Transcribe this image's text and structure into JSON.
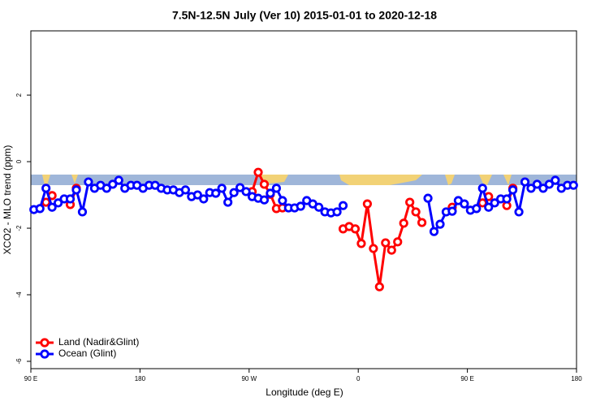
{
  "chart_data": {
    "type": "line",
    "title": "7.5N-12.5N July (Ver 10)   2015-01-01 to 2020-12-18",
    "x_label": "Longitude (deg E)",
    "y_label": "XCO2 - MLO trend (ppm)",
    "xlim": [
      90,
      540
    ],
    "ylim": [
      -6.22,
      3.93
    ],
    "xticks": [
      {
        "value": 90,
        "label": "90 E"
      },
      180,
      {
        "value": 270,
        "label": "90 W"
      },
      {
        "value": 360,
        "label": "0"
      },
      {
        "value": 450,
        "label": "90 E"
      },
      {
        "value": 540,
        "label": "180"
      }
    ],
    "yticks": [
      2,
      0,
      -2,
      -4,
      -6
    ],
    "legend": "bottom-left",
    "x": [
      92.5,
      97.5,
      102.5,
      107.5,
      112.5,
      117.5,
      122.5,
      127.5,
      132.5,
      137.5,
      142.5,
      147.5,
      152.5,
      157.5,
      162.5,
      167.5,
      172.5,
      177.5,
      182.5,
      187.5,
      192.5,
      197.5,
      202.5,
      207.5,
      212.5,
      217.5,
      222.5,
      227.5,
      232.5,
      237.5,
      242.5,
      247.5,
      252.5,
      257.5,
      262.5,
      267.5,
      272.5,
      277.5,
      282.5,
      287.5,
      292.5,
      297.5,
      302.5,
      307.5,
      312.5,
      317.5,
      322.5,
      327.5,
      332.5,
      337.5,
      342.5,
      347.5,
      352.5,
      357.5,
      362.5,
      367.5,
      372.5,
      377.5,
      382.5,
      387.5,
      392.5,
      397.5,
      402.5,
      407.5,
      412.5,
      417.5,
      422.5,
      427.5,
      432.5,
      437.5,
      442.5,
      447.5,
      452.5,
      457.5,
      462.5,
      467.5,
      472.5,
      477.5,
      482.5,
      487.5,
      492.5,
      497.5,
      502.5,
      507.5,
      512.5,
      517.5,
      522.5,
      527.5,
      532.5,
      537.5
    ],
    "series": [
      {
        "name": "Ocean (Glint)",
        "color": "#0000ff",
        "values": [
          -1.44,
          -1.41,
          -0.8,
          -1.37,
          -1.24,
          -1.12,
          -1.12,
          -0.85,
          -1.51,
          -0.61,
          -0.8,
          -0.71,
          -0.8,
          -0.68,
          -0.56,
          -0.8,
          -0.71,
          -0.71,
          -0.8,
          -0.71,
          -0.71,
          -0.8,
          -0.85,
          -0.85,
          -0.93,
          -0.85,
          -1.05,
          -1.0,
          -1.12,
          -0.93,
          -0.95,
          -0.8,
          -1.22,
          -0.93,
          -0.78,
          -0.9,
          -1.05,
          -1.1,
          -1.15,
          -0.95,
          -0.8,
          -1.17,
          -1.39,
          -1.39,
          -1.34,
          -1.17,
          -1.27,
          -1.37,
          -1.51,
          -1.54,
          -1.51,
          -1.32,
          null,
          null,
          null,
          null,
          null,
          null,
          null,
          null,
          null,
          null,
          null,
          null,
          null,
          -1.1,
          -2.1,
          -1.88,
          -1.51,
          -1.49,
          -1.17,
          -1.27,
          -1.46,
          -1.41,
          -0.8,
          -1.37,
          -1.24,
          -1.12,
          -1.12,
          -0.85,
          -1.51,
          -0.61,
          -0.8,
          -0.68,
          -0.8,
          -0.68,
          -0.56,
          -0.8,
          -0.71,
          -0.71
        ]
      },
      {
        "name": "Land (Nadir&Glint)",
        "color": "#ff0000",
        "values": [
          null,
          null,
          -1.22,
          -1.02,
          null,
          null,
          -1.29,
          -0.8,
          null,
          null,
          null,
          null,
          null,
          null,
          null,
          null,
          null,
          null,
          null,
          null,
          null,
          null,
          null,
          null,
          null,
          null,
          null,
          null,
          null,
          null,
          null,
          null,
          null,
          null,
          null,
          null,
          -0.9,
          -0.32,
          -0.68,
          -0.98,
          -1.41,
          -1.39,
          null,
          null,
          null,
          null,
          null,
          null,
          null,
          null,
          null,
          -2.02,
          -1.95,
          -2.02,
          -2.46,
          -1.27,
          -2.61,
          -3.76,
          -2.44,
          -2.66,
          -2.41,
          -1.85,
          -1.22,
          -1.51,
          -1.83,
          null,
          null,
          null,
          null,
          -1.37,
          null,
          null,
          null,
          null,
          -1.24,
          -1.05,
          null,
          null,
          -1.32,
          -0.8,
          null,
          null,
          null,
          null,
          null,
          null,
          null,
          null,
          null,
          null
        ]
      }
    ]
  }
}
